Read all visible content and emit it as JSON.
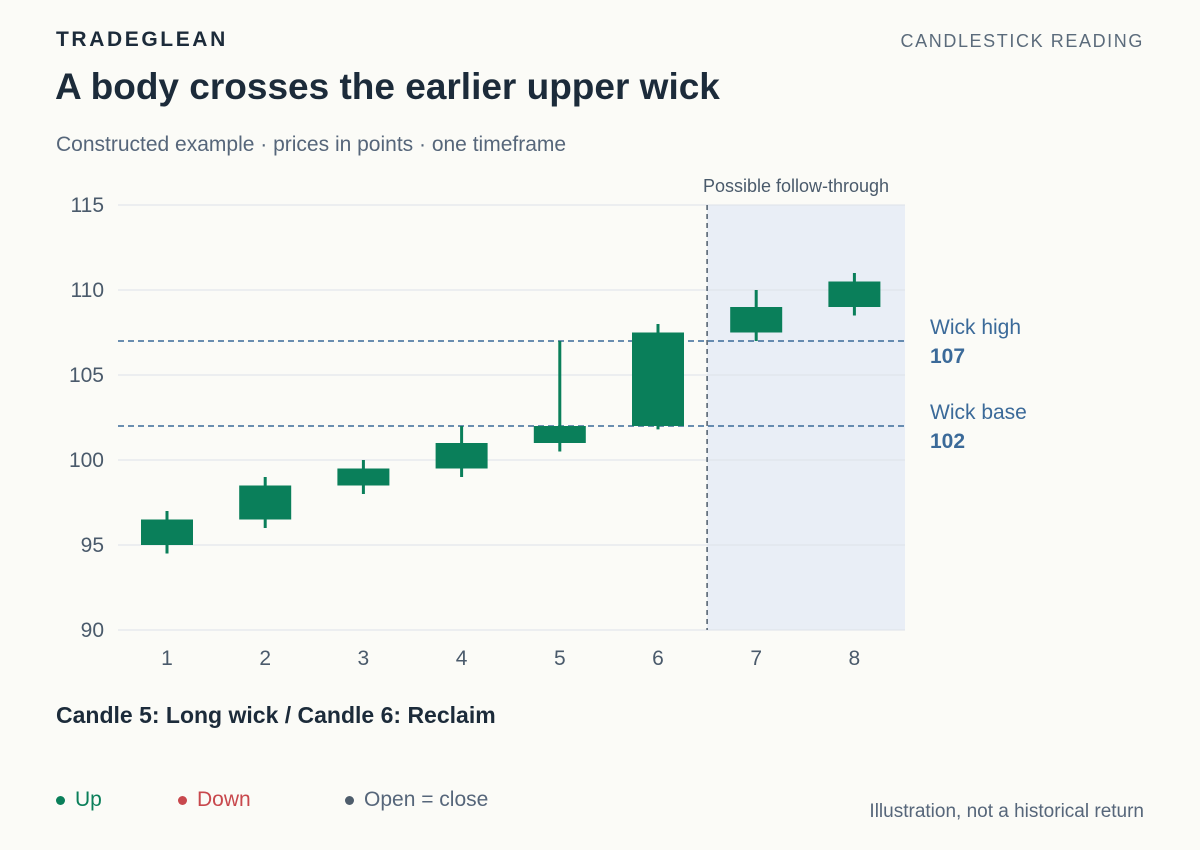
{
  "header": {
    "brand": "TRADEGLEAN",
    "section": "CANDLESTICK READING",
    "title": "A body crosses the earlier upper wick",
    "subtitle": "Constructed example · prices in points · one timeframe"
  },
  "chart_data": {
    "type": "candlestick",
    "ylim": [
      90,
      115
    ],
    "yticks": [
      90,
      95,
      100,
      105,
      110,
      115
    ],
    "categories": [
      "1",
      "2",
      "3",
      "4",
      "5",
      "6",
      "7",
      "8"
    ],
    "candles": [
      {
        "x": "1",
        "open": 95,
        "high": 97,
        "low": 94.5,
        "close": 96.5
      },
      {
        "x": "2",
        "open": 96.5,
        "high": 99,
        "low": 96,
        "close": 98.5
      },
      {
        "x": "3",
        "open": 98.5,
        "high": 100,
        "low": 98,
        "close": 99.5
      },
      {
        "x": "4",
        "open": 99.5,
        "high": 102,
        "low": 99,
        "close": 101
      },
      {
        "x": "5",
        "open": 101,
        "high": 107,
        "low": 100.5,
        "close": 102
      },
      {
        "x": "6",
        "open": 102,
        "high": 108,
        "low": 101.8,
        "close": 107.5
      },
      {
        "x": "7",
        "open": 107.5,
        "high": 110,
        "low": 107,
        "close": 109
      },
      {
        "x": "8",
        "open": 109,
        "high": 111,
        "low": 108.5,
        "close": 110.5
      }
    ],
    "reference_lines": [
      {
        "label": "Wick high",
        "value": 107,
        "value_label": "107"
      },
      {
        "label": "Wick base",
        "value": 102,
        "value_label": "102"
      }
    ],
    "shaded_region": {
      "label": "Possible follow-through",
      "from_index": 6
    },
    "colors": {
      "up": "#0a7f5a",
      "down": "#c8484d",
      "flat": "#4e5d6c",
      "reference": "#3b6a99",
      "shade": "#e9eef6",
      "grid": "#dde2e8"
    }
  },
  "caption": "Candle 5: Long wick / Candle 6: Reclaim",
  "legend": {
    "items": [
      {
        "label": "Up",
        "color": "#0a7f5a"
      },
      {
        "label": "Down",
        "color": "#c8484d"
      },
      {
        "label": "Open = close",
        "color": "#4e5d6c"
      }
    ],
    "note": "Illustration, not a historical return"
  }
}
